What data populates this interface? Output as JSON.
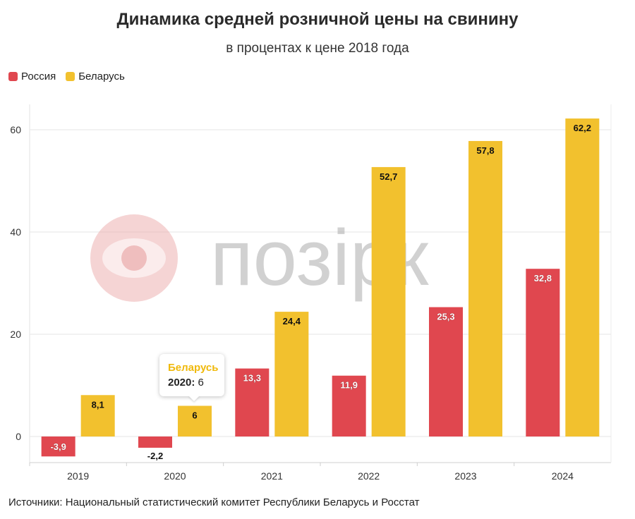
{
  "header": {
    "title": "Динамика средней розничной цены на свинину",
    "subtitle": "в процентах к цене 2018 года"
  },
  "watermark": {
    "text": "позірк",
    "logo_color": "#e8a0a0"
  },
  "source": "Источники: Национальный статистический комитет Республики Беларусь и Росстат",
  "tooltip": {
    "series": "Беларусь",
    "year": "2020:",
    "value": "6"
  },
  "colors": {
    "russia": "#e0474f",
    "belarus": "#f2c12e"
  },
  "chart_data": {
    "type": "bar",
    "categories": [
      "2019",
      "2020",
      "2021",
      "2022",
      "2023",
      "2024"
    ],
    "series": [
      {
        "name": "Россия",
        "color": "#e0474f",
        "values": [
          -3.9,
          -2.2,
          13.3,
          11.9,
          25.3,
          32.8
        ],
        "labels": [
          "-3,9",
          "-2,2",
          "13,3",
          "11,9",
          "25,3",
          "32,8"
        ]
      },
      {
        "name": "Беларусь",
        "color": "#f2c12e",
        "values": [
          8.1,
          6,
          24.4,
          52.7,
          57.8,
          62.2
        ],
        "labels": [
          "8,1",
          "6",
          "24,4",
          "52,7",
          "57,8",
          "62,2"
        ]
      }
    ],
    "yticks": [
      "0",
      "20",
      "40",
      "60"
    ],
    "ytick_values": [
      0,
      20,
      40,
      60
    ],
    "ylim": [
      -5,
      65
    ],
    "grid": true,
    "legend": "top-left"
  }
}
